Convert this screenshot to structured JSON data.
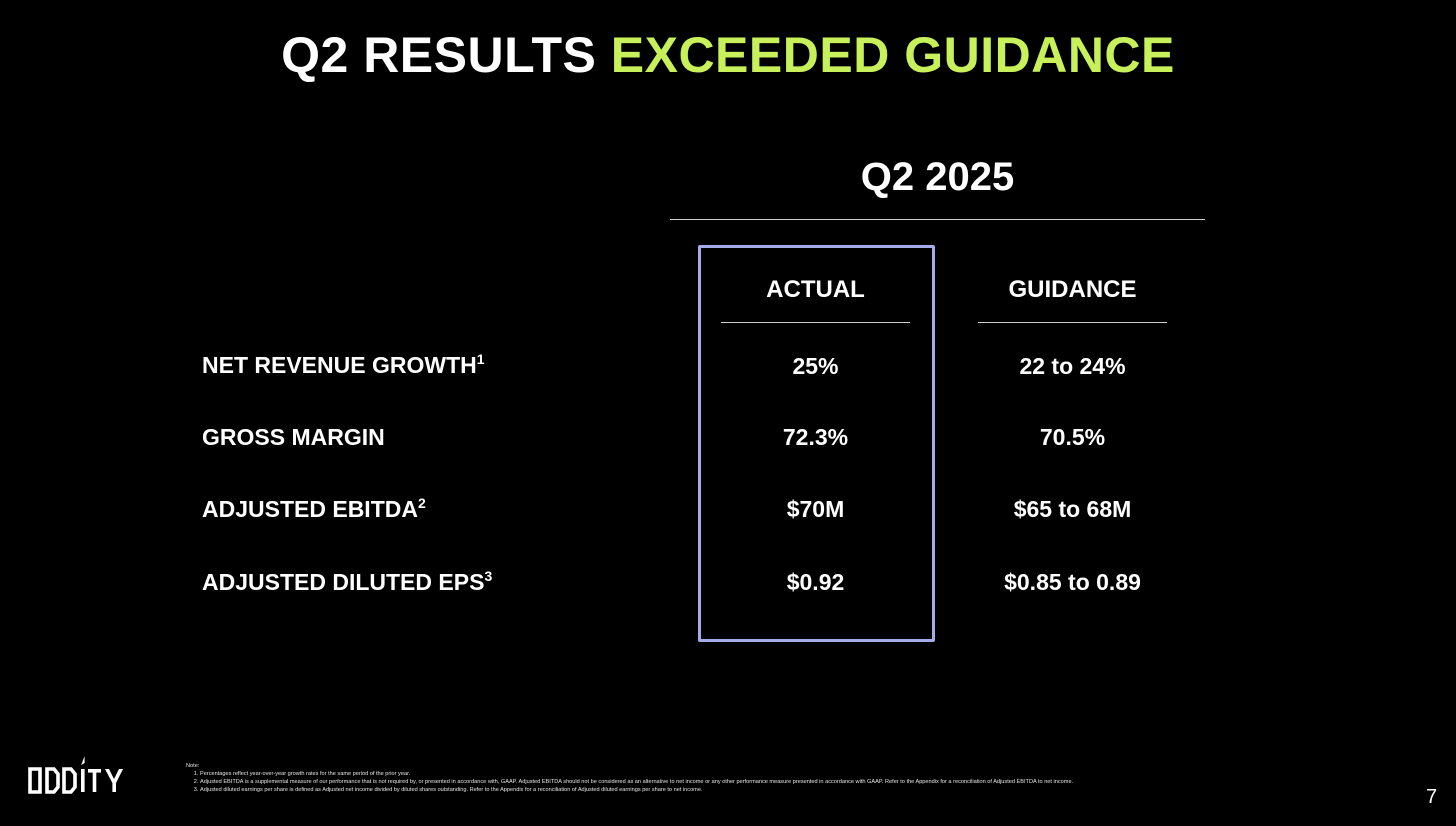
{
  "title": {
    "prefix": "Q2 RESULTS",
    "highlight": "EXCEEDED GUIDANCE",
    "highlight_color": "#c8f05a"
  },
  "period": "Q2 2025",
  "columns": {
    "actual": "ACTUAL",
    "guidance": "GUIDANCE"
  },
  "highlight_box_color": "#a3ace8",
  "rows": [
    {
      "label": "NET REVENUE GROWTH",
      "footnote": "1",
      "actual": "25%",
      "guidance": "22 to 24%"
    },
    {
      "label": "GROSS MARGIN",
      "footnote": "",
      "actual": "72.3%",
      "guidance": "70.5%"
    },
    {
      "label": "ADJUSTED EBITDA",
      "footnote": "2",
      "actual": "$70M",
      "guidance": "$65 to 68M"
    },
    {
      "label": "ADJUSTED DILUTED EPS",
      "footnote": "3",
      "actual": "$0.92",
      "guidance": "$0.85 to 0.89"
    }
  ],
  "logo": "ODDITY",
  "notes": {
    "heading": "Note:",
    "items": [
      "Percentages reflect year-over-year growth rates for the same period of the prior year.",
      "Adjusted EBITDA is a supplemental measure of our performance that is not required by, or presented in accordance with, GAAP. Adjusted EBITDA should not be considered as an alternative to net income or any other performance measure presented in accordance with GAAP. Refer to the Appendix for a reconciliation of Adjusted EBITDA to net income.",
      "Adjusted diluted earnings per share is defined as Adjusted net income divided by diluted shares outstanding. Refer to the Appendix for a reconciliation of Adjusted diluted earnings per share to net income."
    ]
  },
  "page_number": "7"
}
